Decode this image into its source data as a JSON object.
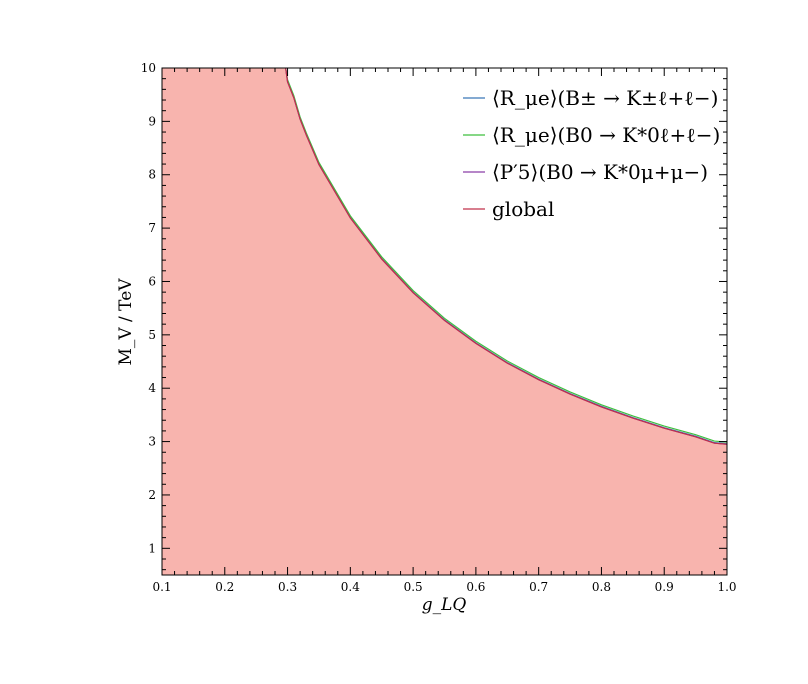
{
  "chart_data": {
    "type": "area",
    "title": "",
    "xlabel": "g_LQ",
    "ylabel": "M_V / TeV",
    "xlim": [
      0.1,
      1.0
    ],
    "ylim": [
      0.5,
      10
    ],
    "xticks": [
      "0.1",
      "0.2",
      "0.3",
      "0.4",
      "0.5",
      "0.6",
      "0.7",
      "0.8",
      "0.9",
      "1.0"
    ],
    "yticks": [
      "1",
      "2",
      "3",
      "4",
      "5",
      "6",
      "7",
      "8",
      "9",
      "10"
    ],
    "grid": false,
    "legend_position": "top-right",
    "fill_color": "#f8b4ae",
    "series": [
      {
        "name": "⟨R_μe⟩(B± → K±ℓ+ℓ−)",
        "color": "#3a78b8",
        "x": [
          0.297,
          0.3,
          0.31,
          0.32,
          0.33,
          0.35,
          0.4,
          0.45,
          0.5,
          0.55,
          0.6,
          0.65,
          0.7,
          0.75,
          0.8,
          0.85,
          0.9,
          0.95,
          0.98,
          1.0
        ],
        "y": [
          10.0,
          9.75,
          9.45,
          9.05,
          8.75,
          8.2,
          7.2,
          6.43,
          5.8,
          5.28,
          4.85,
          4.48,
          4.17,
          3.9,
          3.66,
          3.45,
          3.26,
          3.1,
          2.98,
          2.96
        ]
      },
      {
        "name": "⟨R_μe⟩(B0 → K*0ℓ+ℓ−)",
        "color": "#3fbf3f",
        "x": [
          0.297,
          0.3,
          0.31,
          0.32,
          0.33,
          0.35,
          0.4,
          0.45,
          0.5,
          0.55,
          0.6,
          0.65,
          0.7,
          0.75,
          0.8,
          0.85,
          0.9,
          0.95,
          0.98,
          1.0
        ],
        "y": [
          10.0,
          9.78,
          9.48,
          9.08,
          8.78,
          8.23,
          7.23,
          6.46,
          5.83,
          5.31,
          4.88,
          4.51,
          4.2,
          3.93,
          3.69,
          3.48,
          3.29,
          3.13,
          3.01,
          2.99
        ]
      },
      {
        "name": "⟨P′5⟩(B0 → K*0μ+μ−)",
        "color": "#8a3fa8",
        "x": [
          0.297,
          0.3,
          0.31,
          0.32,
          0.33,
          0.35,
          0.4,
          0.45,
          0.5,
          0.55,
          0.6,
          0.65,
          0.7,
          0.75,
          0.8,
          0.85,
          0.9,
          0.95,
          0.98,
          1.0
        ],
        "y": [
          10.0,
          9.74,
          9.44,
          9.04,
          8.74,
          8.19,
          7.19,
          6.42,
          5.79,
          5.27,
          4.84,
          4.47,
          4.16,
          3.89,
          3.65,
          3.44,
          3.25,
          3.09,
          2.97,
          2.95
        ]
      },
      {
        "name": "global",
        "color": "#c0304a",
        "x": [
          0.297,
          0.3,
          0.31,
          0.32,
          0.33,
          0.35,
          0.4,
          0.45,
          0.5,
          0.55,
          0.6,
          0.65,
          0.7,
          0.75,
          0.8,
          0.85,
          0.9,
          0.95,
          0.98,
          1.0
        ],
        "y": [
          10.0,
          9.74,
          9.44,
          9.04,
          8.74,
          8.19,
          7.19,
          6.42,
          5.79,
          5.27,
          4.84,
          4.47,
          4.16,
          3.89,
          3.65,
          3.44,
          3.25,
          3.09,
          2.97,
          2.95
        ]
      }
    ],
    "legend": [
      {
        "label": "⟨R_μe⟩(B± → K±ℓ+ℓ−)"
      },
      {
        "label": "⟨R_μe⟩(B0 → K*0ℓ+ℓ−)"
      },
      {
        "label": "⟨P′5⟩(B0 → K*0μ+μ−)"
      },
      {
        "label": "global"
      }
    ]
  }
}
